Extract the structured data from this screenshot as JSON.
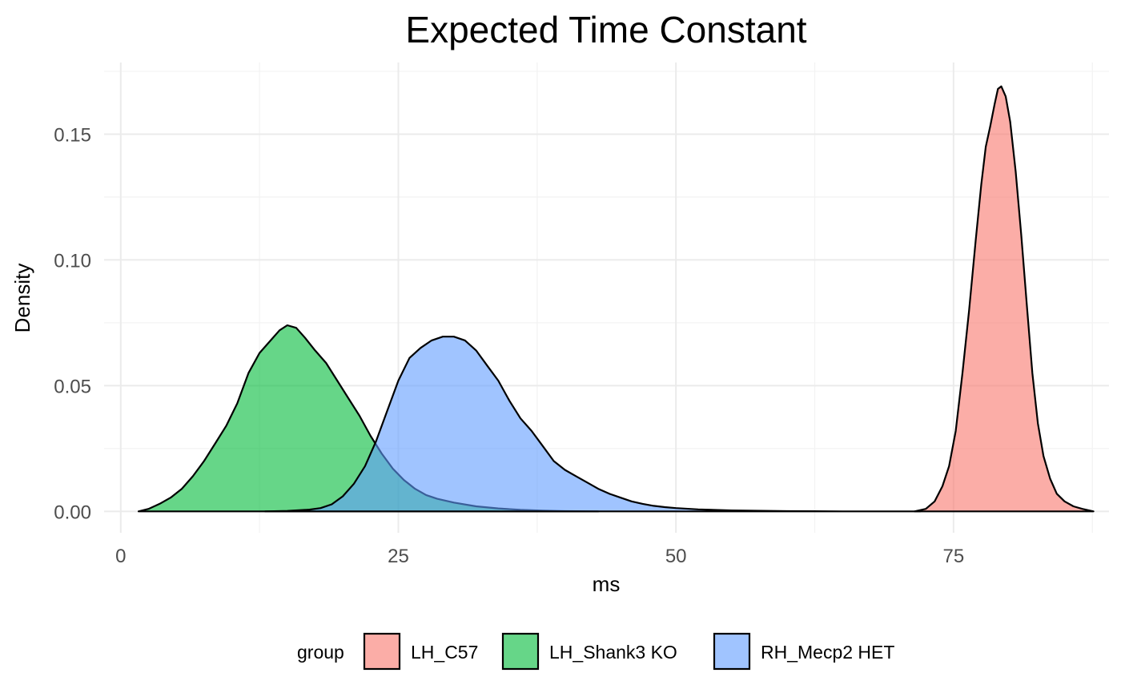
{
  "chart_data": {
    "type": "area",
    "subtype": "density",
    "title": "Expected Time Constant",
    "xlabel": "ms",
    "ylabel": "Density",
    "xlim": [
      -1.5,
      89
    ],
    "ylim": [
      -0.0085,
      0.1785
    ],
    "x_ticks": [
      0,
      25,
      50,
      75
    ],
    "x_tick_labels": [
      "0",
      "25",
      "50",
      "75"
    ],
    "y_ticks": [
      0,
      0.05,
      0.1,
      0.15
    ],
    "y_tick_labels": [
      "0.00",
      "0.05",
      "0.10",
      "0.15"
    ],
    "grid": true,
    "legend": {
      "title": "group",
      "position": "bottom"
    },
    "series": [
      {
        "name": "LH_C57",
        "color": "#F8766D",
        "points": [
          [
            71.5,
            0.0
          ],
          [
            72.5,
            0.001
          ],
          [
            73.3,
            0.004
          ],
          [
            74.0,
            0.01
          ],
          [
            74.6,
            0.018
          ],
          [
            75.2,
            0.032
          ],
          [
            75.8,
            0.055
          ],
          [
            76.4,
            0.08
          ],
          [
            77.0,
            0.108
          ],
          [
            77.5,
            0.13
          ],
          [
            77.9,
            0.145
          ],
          [
            78.3,
            0.153
          ],
          [
            78.7,
            0.162
          ],
          [
            79.0,
            0.168
          ],
          [
            79.3,
            0.169
          ],
          [
            79.7,
            0.165
          ],
          [
            80.1,
            0.155
          ],
          [
            80.6,
            0.135
          ],
          [
            81.1,
            0.11
          ],
          [
            81.6,
            0.082
          ],
          [
            82.1,
            0.055
          ],
          [
            82.6,
            0.035
          ],
          [
            83.1,
            0.022
          ],
          [
            83.7,
            0.013
          ],
          [
            84.3,
            0.007
          ],
          [
            85.0,
            0.004
          ],
          [
            85.8,
            0.002
          ],
          [
            86.6,
            0.001
          ],
          [
            87.6,
            0.0
          ]
        ]
      },
      {
        "name": "LH_Shank3 KO",
        "color": "#00BA38",
        "points": [
          [
            1.6,
            0.0
          ],
          [
            2.5,
            0.001
          ],
          [
            3.5,
            0.003
          ],
          [
            4.5,
            0.0055
          ],
          [
            5.5,
            0.009
          ],
          [
            6.5,
            0.014
          ],
          [
            7.5,
            0.02
          ],
          [
            8.5,
            0.027
          ],
          [
            9.5,
            0.034
          ],
          [
            10.5,
            0.043
          ],
          [
            11.5,
            0.055
          ],
          [
            12.5,
            0.063
          ],
          [
            13.5,
            0.068
          ],
          [
            14.3,
            0.072
          ],
          [
            15.0,
            0.074
          ],
          [
            15.8,
            0.073
          ],
          [
            16.6,
            0.069
          ],
          [
            17.5,
            0.064
          ],
          [
            18.5,
            0.059
          ],
          [
            19.5,
            0.052
          ],
          [
            20.5,
            0.045
          ],
          [
            21.5,
            0.038
          ],
          [
            22.5,
            0.03
          ],
          [
            23.5,
            0.023
          ],
          [
            24.5,
            0.017
          ],
          [
            25.5,
            0.0125
          ],
          [
            26.5,
            0.009
          ],
          [
            27.5,
            0.0065
          ],
          [
            28.5,
            0.005
          ],
          [
            30.0,
            0.0035
          ],
          [
            32.0,
            0.002
          ],
          [
            34.0,
            0.0012
          ],
          [
            36.0,
            0.0006
          ],
          [
            38.0,
            0.0003
          ],
          [
            40.0,
            0.0001
          ],
          [
            43.0,
            0.0
          ]
        ]
      },
      {
        "name": "RH_Mecp2 HET",
        "color": "#619CFF",
        "points": [
          [
            13.0,
            0.0
          ],
          [
            15.0,
            0.0002
          ],
          [
            17.0,
            0.0007
          ],
          [
            18.0,
            0.0013
          ],
          [
            19.0,
            0.0028
          ],
          [
            20.0,
            0.006
          ],
          [
            21.0,
            0.011
          ],
          [
            22.0,
            0.018
          ],
          [
            23.0,
            0.028
          ],
          [
            24.0,
            0.04
          ],
          [
            25.0,
            0.052
          ],
          [
            26.0,
            0.061
          ],
          [
            27.0,
            0.065
          ],
          [
            28.0,
            0.068
          ],
          [
            29.0,
            0.0695
          ],
          [
            30.0,
            0.0695
          ],
          [
            31.0,
            0.068
          ],
          [
            32.0,
            0.064
          ],
          [
            33.0,
            0.058
          ],
          [
            34.0,
            0.052
          ],
          [
            35.0,
            0.044
          ],
          [
            36.0,
            0.037
          ],
          [
            37.0,
            0.032
          ],
          [
            38.0,
            0.026
          ],
          [
            39.0,
            0.02
          ],
          [
            40.0,
            0.0165
          ],
          [
            41.0,
            0.014
          ],
          [
            42.0,
            0.0115
          ],
          [
            43.0,
            0.009
          ],
          [
            44.0,
            0.007
          ],
          [
            45.0,
            0.0055
          ],
          [
            46.0,
            0.004
          ],
          [
            47.0,
            0.003
          ],
          [
            48.0,
            0.0022
          ],
          [
            49.0,
            0.0017
          ],
          [
            50.0,
            0.0013
          ],
          [
            52.0,
            0.0008
          ],
          [
            55.0,
            0.0004
          ],
          [
            60.0,
            0.0001
          ],
          [
            65.0,
            0.0
          ],
          [
            72.0,
            0.0
          ]
        ]
      }
    ]
  }
}
